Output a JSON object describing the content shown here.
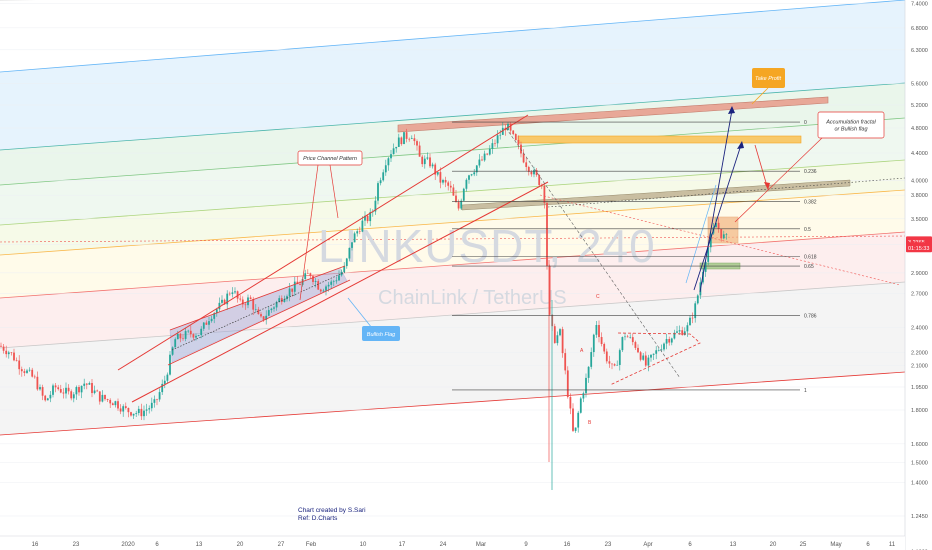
{
  "chart_data": {
    "type": "candlestick",
    "watermark": {
      "symbol": "LINKUSDT, 240",
      "name": "ChainLink / TetherUS"
    },
    "y_scale": "log",
    "y_ticks": [
      "7.4000",
      "6.8000",
      "6.3000",
      "5.6000",
      "5.2000",
      "4.8000",
      "4.4000",
      "4.0000",
      "3.8000",
      "3.5000",
      "3.2000",
      "2.9000",
      "2.7000",
      "2.4000",
      "2.2000",
      "2.1000",
      "1.9500",
      "1.8000",
      "1.6000",
      "1.5000",
      "1.4000",
      "1.2450",
      "1.1000"
    ],
    "y_tick_values": [
      7.4,
      6.8,
      6.3,
      5.6,
      5.2,
      4.8,
      4.4,
      4.0,
      3.8,
      3.5,
      3.2,
      2.9,
      2.7,
      2.4,
      2.2,
      2.1,
      1.95,
      1.8,
      1.6,
      1.5,
      1.4,
      1.245,
      1.1
    ],
    "x_ticks": [
      "16",
      "23",
      "2020",
      "6",
      "13",
      "20",
      "27",
      "Feb",
      "10",
      "17",
      "24",
      "Mar",
      "9",
      "16",
      "23",
      "Apr",
      "6",
      "13",
      "20",
      "25",
      "May",
      "6",
      "11"
    ],
    "price_badges": [
      {
        "text": "3.2365",
        "color": "#f23645",
        "value": 3.2365
      },
      {
        "text": "01:15:33",
        "color": "#f23645",
        "value": 3.17
      }
    ],
    "fib_levels": [
      {
        "label": "0",
        "value": 4.9
      },
      {
        "label": "0.236",
        "value": 4.13
      },
      {
        "label": "0.382",
        "value": 3.72
      },
      {
        "label": "0.5",
        "value": 3.38
      },
      {
        "label": "0.618",
        "value": 3.07
      },
      {
        "label": "0.65",
        "value": 2.97
      },
      {
        "label": "0.786",
        "value": 2.5
      },
      {
        "label": "1",
        "value": 1.93
      }
    ],
    "annotations": {
      "price_channel": "Price Channel Pattern",
      "bullish_flag": "Bullish Flag",
      "take_profit": "Take Profit",
      "accumulation": "Accumulation fractal\nor Bullish flag",
      "letter_c": "C",
      "letter_a": "A",
      "letter_b": "B"
    },
    "credit": [
      "Chart created by S.Sari",
      "Ref: D.Charts"
    ],
    "colors": {
      "up": "#26a69a",
      "down": "#ef5350",
      "channel": "#e53935",
      "flag_fill": "#9fa8da",
      "take_profit": "#f5a623",
      "bullish_flag_tag": "#64b5f6"
    }
  }
}
